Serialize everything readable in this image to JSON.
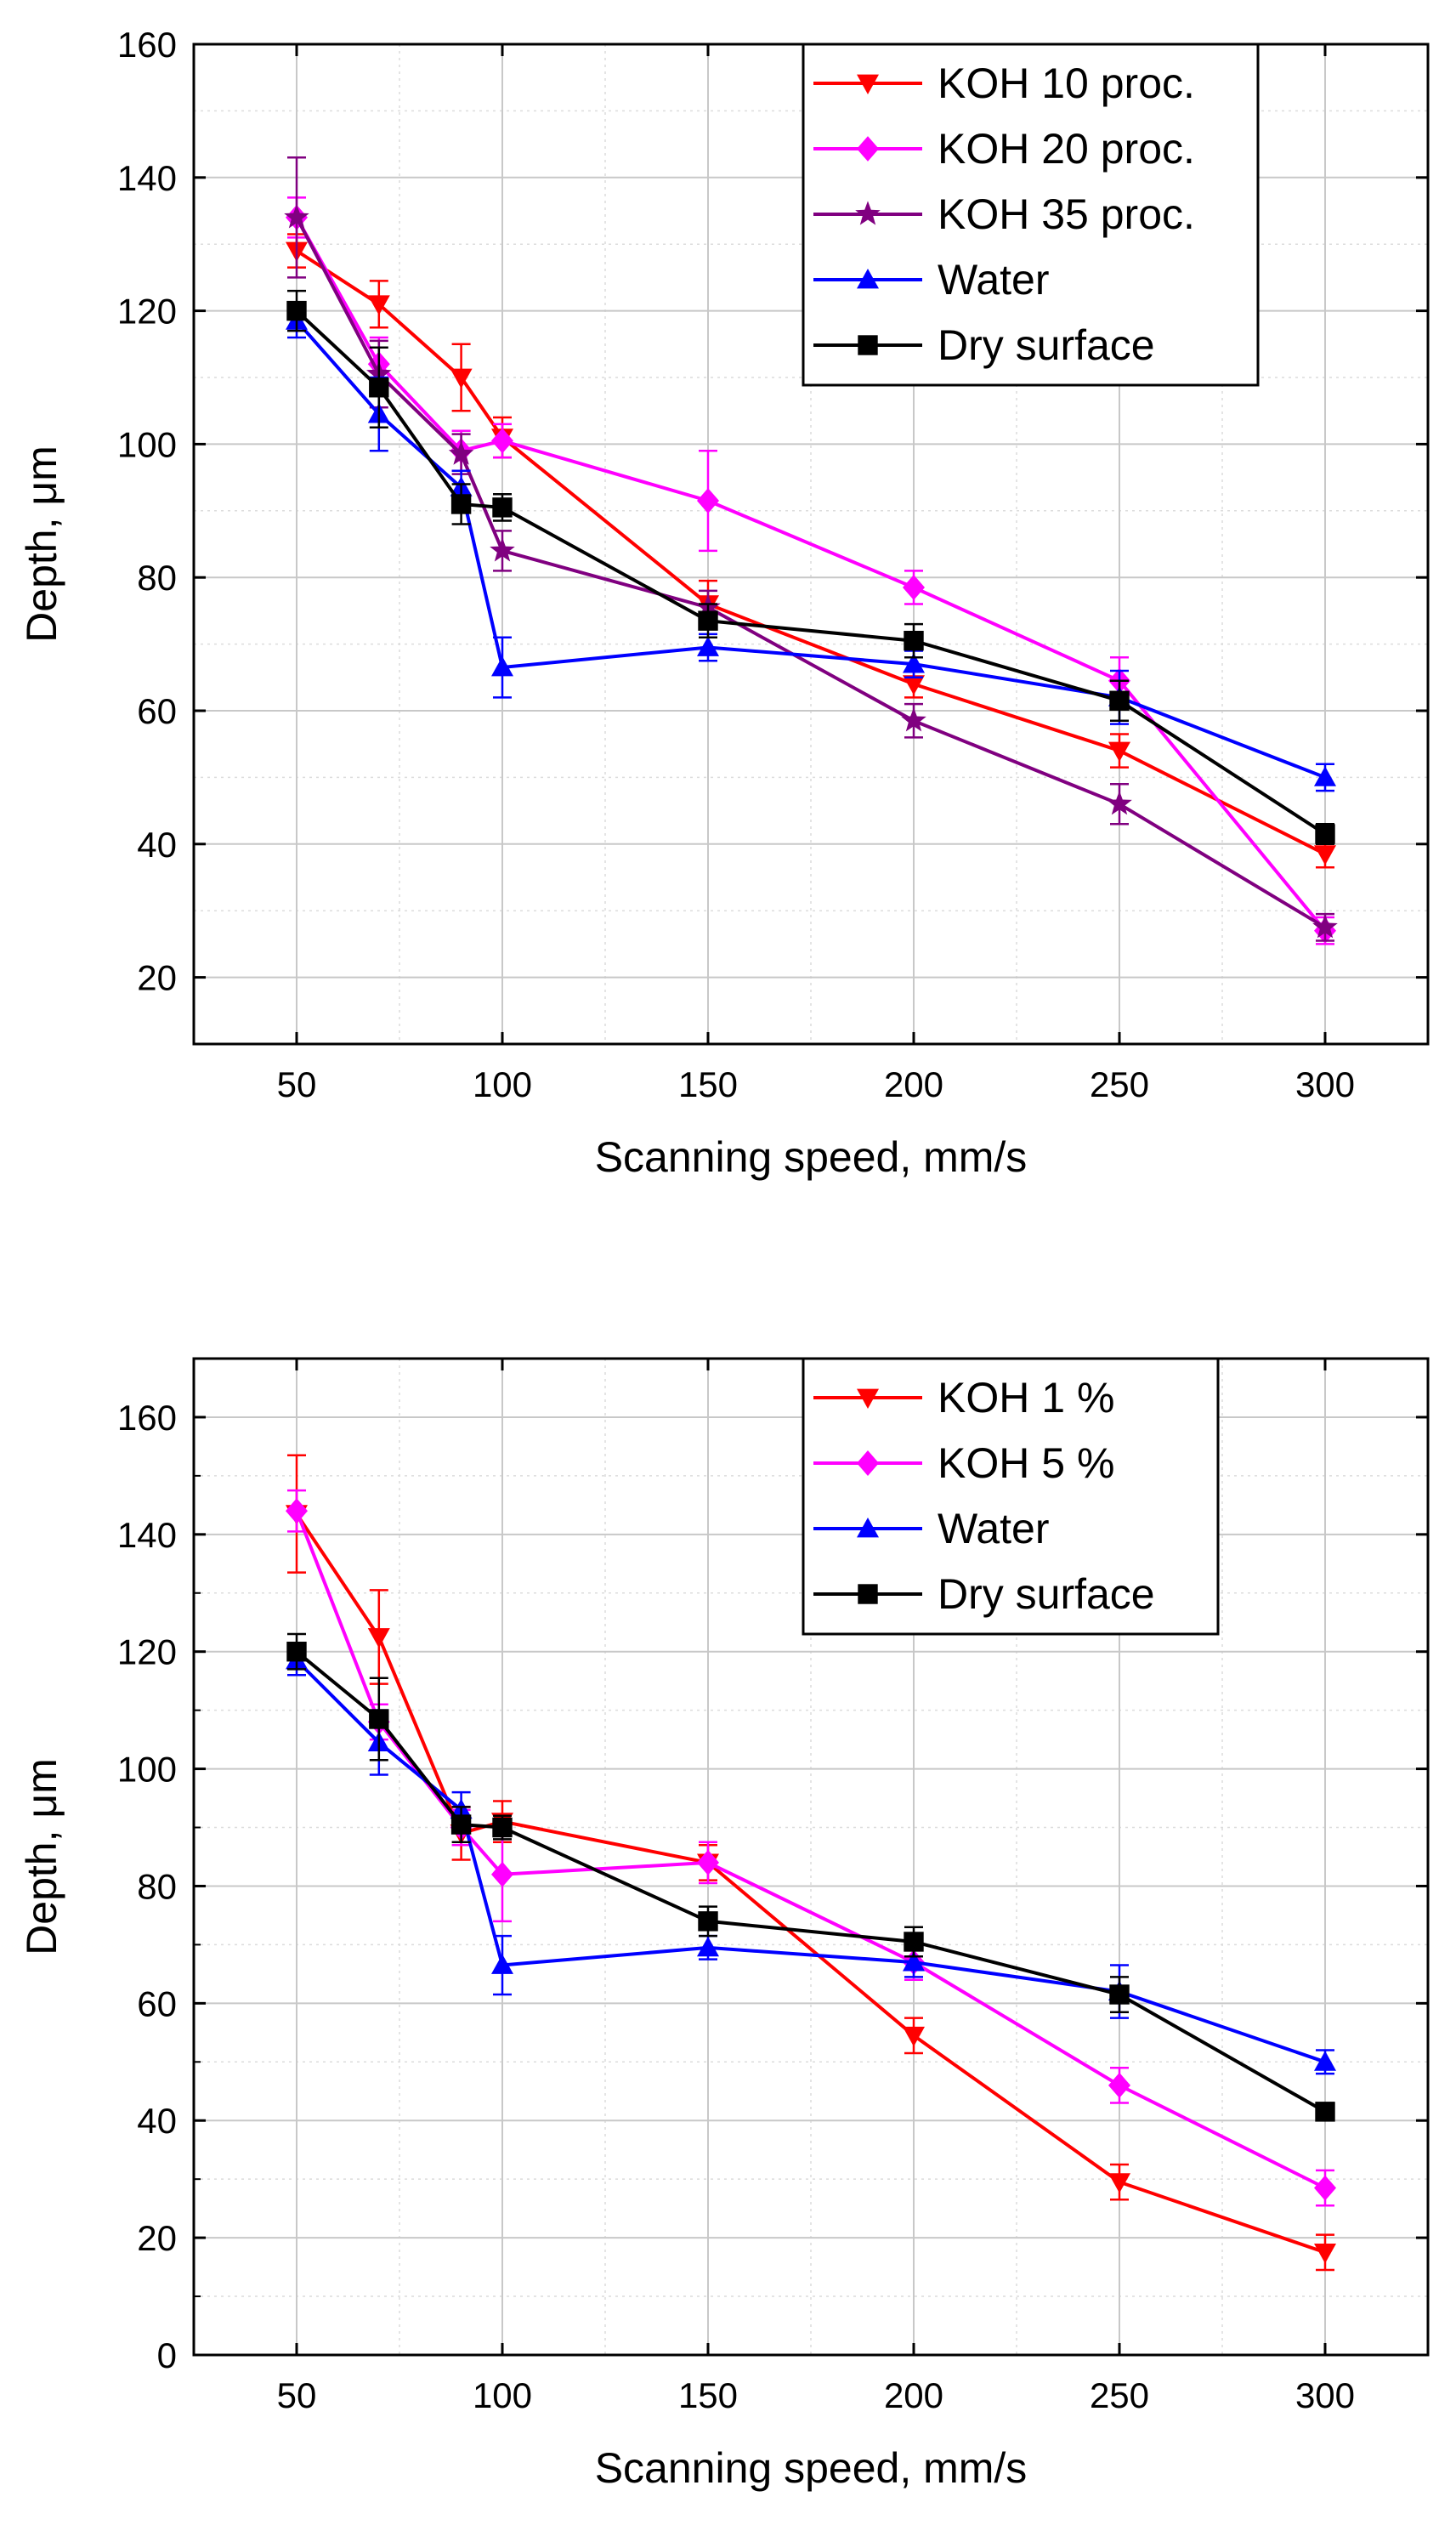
{
  "colors": {
    "koh10": "#ff0000",
    "koh20": "#ff00ff",
    "koh35": "#800080",
    "water": "#0000ff",
    "dry": "#000000",
    "koh1": "#ff0000",
    "koh5": "#ff00ff"
  },
  "chart_data": [
    {
      "type": "line",
      "title": "",
      "xlabel": "Scanning speed, mm/s",
      "ylabel": "Depth, μm",
      "xlim": [
        25,
        325
      ],
      "ylim": [
        10,
        160
      ],
      "xticks": [
        50,
        100,
        150,
        200,
        250,
        300
      ],
      "xtick_labels": [
        "50",
        "100",
        "150",
        "200",
        "250",
        "300"
      ],
      "yticks": [
        20,
        40,
        60,
        80,
        100,
        120,
        140,
        160
      ],
      "ytick_labels": [
        "20",
        "40",
        "60",
        "80",
        "100",
        "120",
        "140",
        "160"
      ],
      "legend_position": "top-right",
      "grid": true,
      "x": [
        50,
        70,
        90,
        100,
        150,
        200,
        250,
        300
      ],
      "series": [
        {
          "name": "KOH 10 proc.",
          "color": "#ff0000",
          "marker": "triangle-down",
          "values": [
            129,
            121,
            110,
            101,
            76,
            64,
            54,
            38.5
          ],
          "errors": [
            2.5,
            3.5,
            5,
            3,
            3.5,
            2,
            2.5,
            2
          ]
        },
        {
          "name": "KOH 20 proc.",
          "color": "#ff00ff",
          "marker": "diamond",
          "values": [
            134,
            112,
            99,
            100.5,
            91.5,
            78.5,
            64.5,
            27
          ],
          "errors": [
            3,
            4,
            3,
            2.5,
            7.5,
            2.5,
            3.5,
            2
          ]
        },
        {
          "name": "KOH 35 proc.",
          "color": "#800080",
          "marker": "star",
          "values": [
            134,
            110.5,
            98.5,
            84,
            75.5,
            58.5,
            46,
            27.5
          ],
          "errors": [
            9,
            5,
            3,
            3,
            2.5,
            2.5,
            3,
            2
          ]
        },
        {
          "name": "Water",
          "color": "#0000ff",
          "marker": "triangle-up",
          "values": [
            118.5,
            104.5,
            93.5,
            66.5,
            69.5,
            67,
            62,
            50
          ],
          "errors": [
            2.5,
            5.5,
            2.5,
            4.5,
            2,
            2,
            4,
            2
          ]
        },
        {
          "name": "Dry surface",
          "color": "#000000",
          "marker": "square",
          "values": [
            120,
            108.5,
            91,
            90.5,
            73.5,
            70.5,
            61.5,
            41.5
          ],
          "errors": [
            3,
            6,
            3,
            2,
            2.5,
            2.5,
            3,
            1.5
          ]
        }
      ]
    },
    {
      "type": "line",
      "title": "",
      "xlabel": "Scanning speed, mm/s",
      "ylabel": "Depth, μm",
      "xlim": [
        25,
        325
      ],
      "ylim": [
        0,
        170
      ],
      "xticks": [
        50,
        100,
        150,
        200,
        250,
        300
      ],
      "xtick_labels": [
        "50",
        "100",
        "150",
        "200",
        "250",
        "300"
      ],
      "yticks": [
        0,
        20,
        40,
        60,
        80,
        100,
        120,
        140,
        160
      ],
      "ytick_labels": [
        "0",
        "20",
        "40",
        "60",
        "80",
        "100",
        "120",
        "140",
        "160"
      ],
      "legend_position": "top-right",
      "grid": true,
      "x": [
        50,
        70,
        90,
        100,
        150,
        200,
        250,
        300
      ],
      "series": [
        {
          "name": "KOH 1 %",
          "color": "#ff0000",
          "marker": "triangle-down",
          "values": [
            143.5,
            122.5,
            89,
            91,
            84,
            54.5,
            29.5,
            17.5
          ],
          "errors": [
            10,
            8,
            4.5,
            3.5,
            3,
            3,
            3,
            3
          ]
        },
        {
          "name": "KOH 5 %",
          "color": "#ff00ff",
          "marker": "diamond",
          "values": [
            144,
            108,
            90,
            82,
            84,
            67,
            46,
            28.5
          ],
          "errors": [
            3.5,
            3,
            3,
            8,
            3.5,
            3,
            3,
            3
          ]
        },
        {
          "name": "Water",
          "color": "#0000ff",
          "marker": "triangle-up",
          "values": [
            118.5,
            104.5,
            93,
            66.5,
            69.5,
            67,
            62,
            50
          ],
          "errors": [
            2.5,
            5.5,
            3,
            5,
            2,
            2.5,
            4.5,
            2
          ]
        },
        {
          "name": "Dry surface",
          "color": "#000000",
          "marker": "square",
          "values": [
            120,
            108.5,
            90.5,
            90,
            74,
            70.5,
            61.5,
            41.5
          ],
          "errors": [
            3,
            7,
            3,
            2,
            2.5,
            2.5,
            3,
            1.5
          ]
        }
      ]
    }
  ]
}
